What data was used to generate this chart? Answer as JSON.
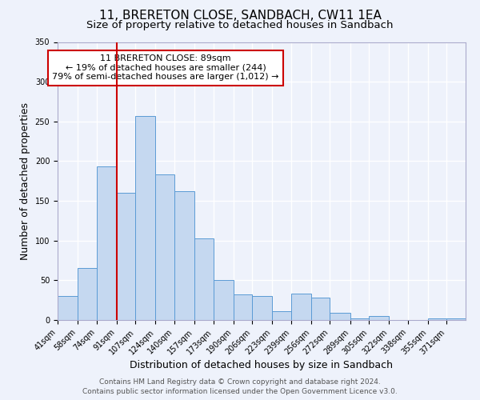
{
  "title": "11, BRERETON CLOSE, SANDBACH, CW11 1EA",
  "subtitle": "Size of property relative to detached houses in Sandbach",
  "xlabel": "Distribution of detached houses by size in Sandbach",
  "ylabel": "Number of detached properties",
  "bin_labels": [
    "41sqm",
    "58sqm",
    "74sqm",
    "91sqm",
    "107sqm",
    "124sqm",
    "140sqm",
    "157sqm",
    "173sqm",
    "190sqm",
    "206sqm",
    "223sqm",
    "239sqm",
    "256sqm",
    "272sqm",
    "289sqm",
    "305sqm",
    "322sqm",
    "338sqm",
    "355sqm",
    "371sqm"
  ],
  "bar_values": [
    30,
    65,
    193,
    160,
    257,
    183,
    162,
    103,
    50,
    32,
    30,
    11,
    33,
    28,
    9,
    2,
    5,
    0,
    0,
    2,
    2
  ],
  "bar_color": "#c5d8f0",
  "bar_edge_color": "#5b9bd5",
  "vline_x": 91,
  "vline_color": "#cc0000",
  "annotation_title": "11 BRERETON CLOSE: 89sqm",
  "annotation_line1": "← 19% of detached houses are smaller (244)",
  "annotation_line2": "79% of semi-detached houses are larger (1,012) →",
  "annotation_box_color": "#ffffff",
  "annotation_box_edge": "#cc0000",
  "ylim": [
    0,
    350
  ],
  "yticks": [
    0,
    50,
    100,
    150,
    200,
    250,
    300,
    350
  ],
  "bin_edges": [
    41,
    58,
    74,
    91,
    107,
    124,
    140,
    157,
    173,
    190,
    206,
    223,
    239,
    256,
    272,
    289,
    305,
    322,
    338,
    355,
    371,
    387
  ],
  "footer_line1": "Contains HM Land Registry data © Crown copyright and database right 2024.",
  "footer_line2": "Contains public sector information licensed under the Open Government Licence v3.0.",
  "background_color": "#eef2fb",
  "grid_color": "#ffffff",
  "title_fontsize": 11,
  "subtitle_fontsize": 9.5,
  "axis_label_fontsize": 9,
  "tick_fontsize": 7,
  "footer_fontsize": 6.5
}
